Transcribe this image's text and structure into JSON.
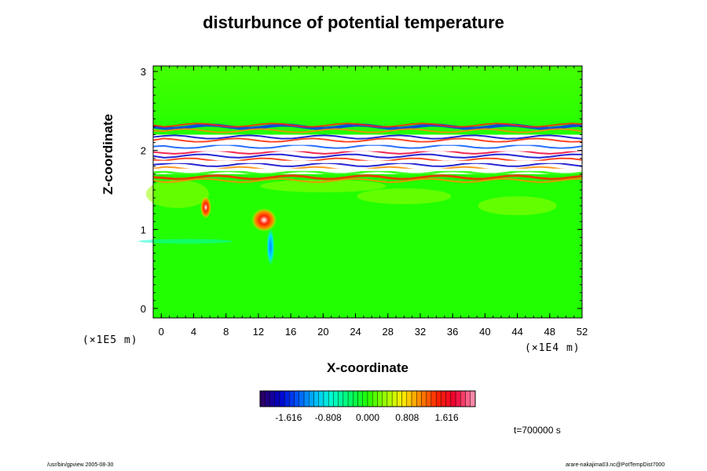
{
  "chart_data": {
    "type": "heatmap",
    "title": "disturbunce of potential temperature",
    "xlabel": "X-coordinate",
    "ylabel": "Z-coordinate",
    "x_unit": "(×1E4 m)",
    "y_unit": "(×1E5 m)",
    "x_ticks": [
      "0",
      "4",
      "8",
      "12",
      "16",
      "20",
      "24",
      "28",
      "32",
      "36",
      "40",
      "44",
      "48",
      "52"
    ],
    "y_ticks": [
      "0",
      "1",
      "2",
      "3"
    ],
    "xlim": [
      -1,
      52
    ],
    "ylim": [
      -0.12,
      3.07
    ],
    "colorbar": {
      "min": -2.2,
      "max": 2.2,
      "tick_labels": [
        "-1.616",
        "-0.808",
        "0.000",
        "0.808",
        "1.616"
      ],
      "tick_values": [
        -1.616,
        -0.808,
        0.0,
        0.808,
        1.616
      ],
      "colors": [
        "#2a0066",
        "#0000cc",
        "#0055ff",
        "#00bbff",
        "#00ffcc",
        "#00ff66",
        "#22ff00",
        "#99ff00",
        "#ffee00",
        "#ff8800",
        "#ff2200",
        "#ee0033",
        "#ff88aa"
      ]
    },
    "background_value": 0.0,
    "features": [
      {
        "kind": "band",
        "z_range": [
          1.7,
          2.2
        ],
        "description_value": "saturated"
      },
      {
        "kind": "blob",
        "x": 12.7,
        "z": 1.12,
        "value": 1.9
      },
      {
        "kind": "blob",
        "x": 5.5,
        "z": 1.28,
        "value": 1.5
      },
      {
        "kind": "blob",
        "x": 13.5,
        "z": 0.78,
        "value": -0.9
      }
    ]
  },
  "annotations": {
    "time": "t=700000 s",
    "footer_left": "/usr/bin/gpview 2005-08-30",
    "footer_right": "arare-nakajima03.nc@PotTempDist7000"
  }
}
